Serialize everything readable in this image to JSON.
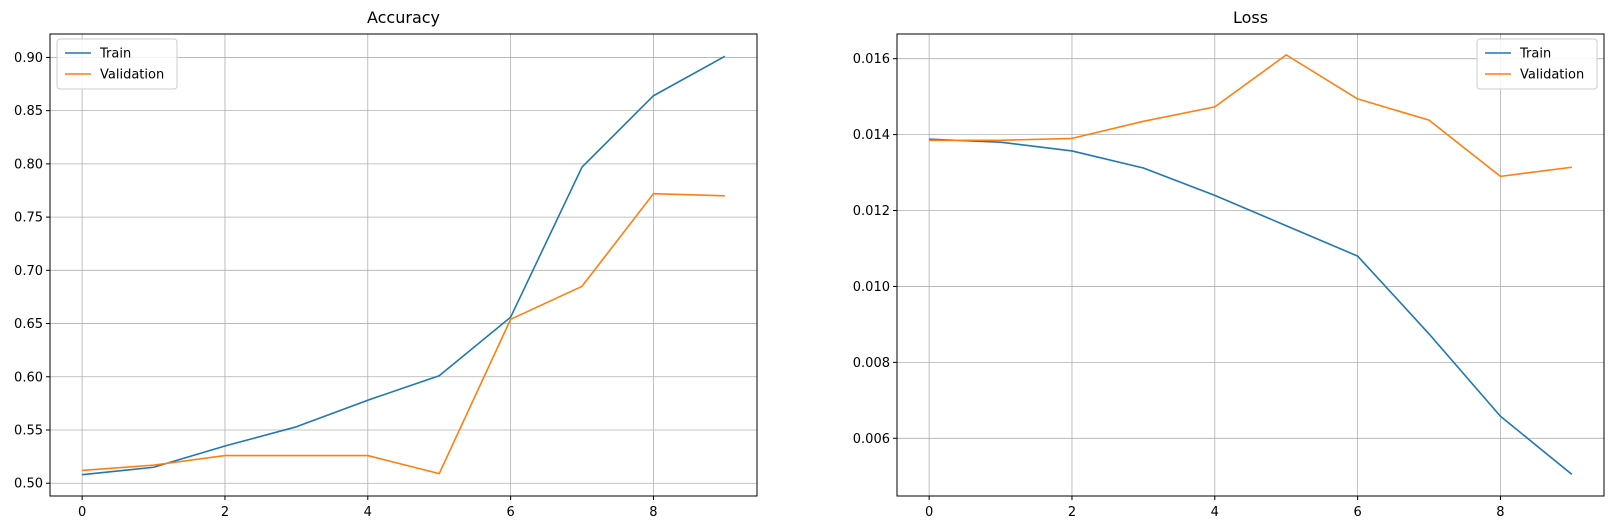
{
  "chart_data": [
    {
      "type": "line",
      "title": "Accuracy",
      "xlabel": "",
      "ylabel": "",
      "x": [
        0,
        1,
        2,
        3,
        4,
        5,
        6,
        7,
        8,
        9
      ],
      "xlim": [
        -0.45,
        9.45
      ],
      "ylim": [
        0.488,
        0.922
      ],
      "xticks": [
        0,
        2,
        4,
        6,
        8
      ],
      "xtick_labels": [
        "0",
        "2",
        "4",
        "6",
        "8"
      ],
      "yticks": [
        0.5,
        0.55,
        0.6,
        0.65,
        0.7,
        0.75,
        0.8,
        0.85,
        0.9
      ],
      "ytick_labels": [
        "0.50",
        "0.55",
        "0.60",
        "0.65",
        "0.70",
        "0.75",
        "0.80",
        "0.85",
        "0.90"
      ],
      "grid": true,
      "legend_position": "top-left",
      "series": [
        {
          "name": "Train",
          "color": "#1f77b4",
          "values": [
            0.508,
            0.515,
            0.535,
            0.553,
            0.578,
            0.601,
            0.656,
            0.797,
            0.864,
            0.901
          ]
        },
        {
          "name": "Validation",
          "color": "#ff7f0e",
          "values": [
            0.512,
            0.517,
            0.526,
            0.526,
            0.526,
            0.509,
            0.654,
            0.685,
            0.772,
            0.77
          ]
        }
      ]
    },
    {
      "type": "line",
      "title": "Loss",
      "xlabel": "",
      "ylabel": "",
      "x": [
        0,
        1,
        2,
        3,
        4,
        5,
        6,
        7,
        8,
        9
      ],
      "xlim": [
        -0.45,
        9.45
      ],
      "ylim": [
        0.00448,
        0.01665
      ],
      "xticks": [
        0,
        2,
        4,
        6,
        8
      ],
      "xtick_labels": [
        "0",
        "2",
        "4",
        "6",
        "8"
      ],
      "yticks": [
        0.006,
        0.008,
        0.01,
        0.012,
        0.014,
        0.016
      ],
      "ytick_labels": [
        "0.006",
        "0.008",
        "0.010",
        "0.012",
        "0.014",
        "0.016"
      ],
      "grid": true,
      "legend_position": "top-right",
      "series": [
        {
          "name": "Train",
          "color": "#1f77b4",
          "values": [
            0.01388,
            0.0138,
            0.01357,
            0.01312,
            0.0124,
            0.0116,
            0.0108,
            0.00875,
            0.00658,
            0.00505
          ]
        },
        {
          "name": "Validation",
          "color": "#ff7f0e",
          "values": [
            0.01385,
            0.01385,
            0.0139,
            0.01435,
            0.01473,
            0.0161,
            0.01494,
            0.01438,
            0.0129,
            0.01314
          ]
        }
      ]
    }
  ]
}
